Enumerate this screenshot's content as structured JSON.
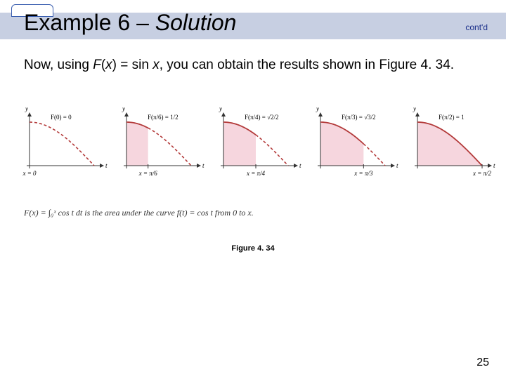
{
  "title_prefix": "Example 6 – ",
  "title_solution": "Solution",
  "contd": "cont'd",
  "body_pre": "Now, using ",
  "body_fx": "F",
  "body_paren_open": "(",
  "body_x": "x",
  "body_paren_close": ")",
  "body_eq": " = sin ",
  "body_x2": "x",
  "body_post": ", you can obtain the results shown in Figure 4. 34.",
  "panels": [
    {
      "F_label": "F(0) = 0",
      "x_label": "x = 0",
      "fill_to": 0.0
    },
    {
      "F_label": "F(π/6) = 1/2",
      "x_label": "x = π/6",
      "fill_to": 0.5236
    },
    {
      "F_label": "F(π/4) = √2/2",
      "x_label": "x = π/4",
      "fill_to": 0.7854
    },
    {
      "F_label": "F(π/3) = √3/2",
      "x_label": "x = π/3",
      "fill_to": 1.0472
    },
    {
      "F_label": "F(π/2) = 1",
      "x_label": "x = π/2",
      "fill_to": 1.5708
    }
  ],
  "curve_color": "#b33a3a",
  "fill_color": "#f6d6de",
  "axis_color": "#333333",
  "caption_main": "F(x) = ∫₀ˣ cos t dt  is the area under the curve f(t) = cos t from 0 to x.",
  "figure_label": "Figure 4. 34",
  "page_number": "25"
}
